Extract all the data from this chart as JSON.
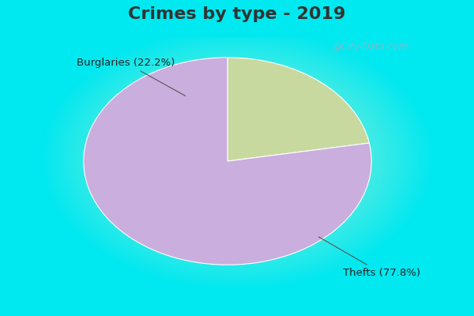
{
  "title": "Crimes by type - 2019",
  "slices": [
    {
      "label": "Burglaries (22.2%)",
      "value": 22.2,
      "color": "#c8d9a0"
    },
    {
      "label": "Thefts (77.8%)",
      "value": 77.8,
      "color": "#c9aede"
    }
  ],
  "bg_top_strip": "#00e8f0",
  "bg_center": "#d8f0d8",
  "bg_corner": "#b0e8c0",
  "title_color": "#333333",
  "title_fontsize": 16,
  "label_fontsize": 9.5,
  "watermark": "@City-Data.com",
  "watermark_color": "#90b8c8"
}
